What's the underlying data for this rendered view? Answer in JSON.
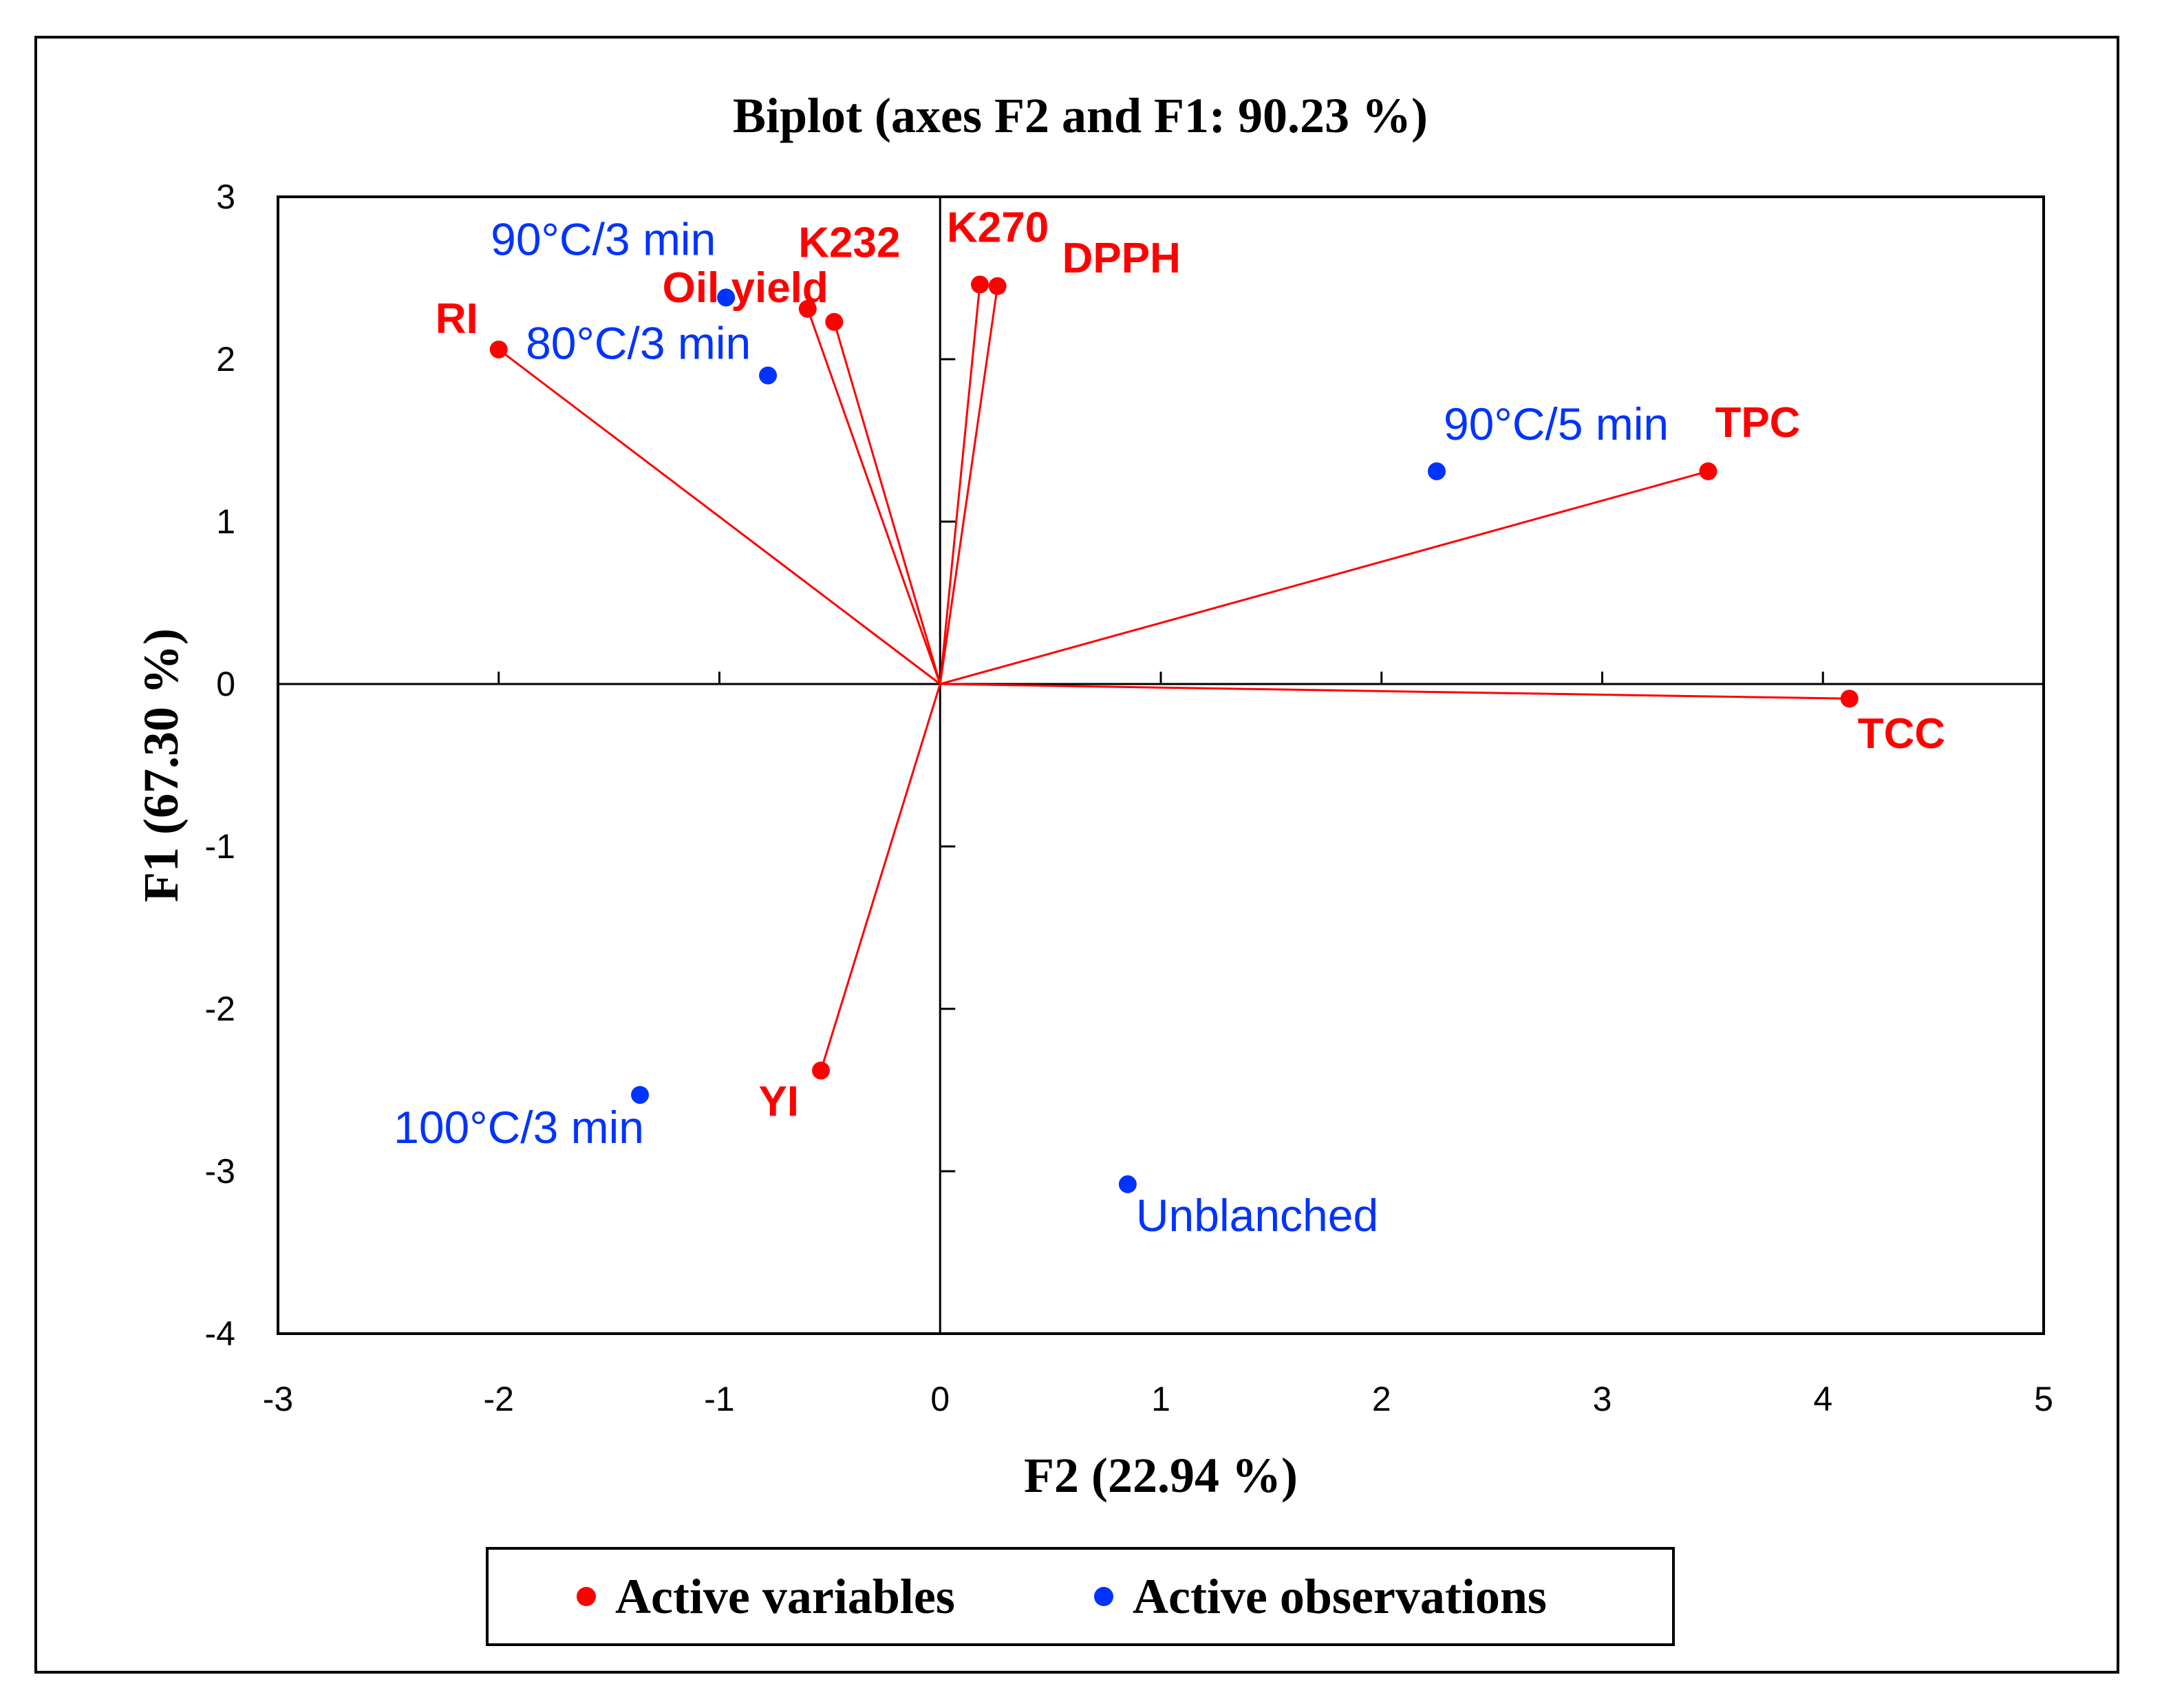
{
  "chart_data": {
    "type": "scatter",
    "subtype": "biplot",
    "title": "Biplot (axes F2 and F1: 90.23 %)",
    "xlabel": "F2 (22.94 %)",
    "ylabel": "F1 (67.30 %)",
    "xlim": [
      -3,
      5
    ],
    "ylim": [
      -4,
      3
    ],
    "xticks": [
      -3,
      -2,
      -1,
      0,
      1,
      2,
      3,
      4,
      5
    ],
    "yticks": [
      -4,
      -3,
      -2,
      -1,
      0,
      1,
      2,
      3
    ],
    "xtick_labels": [
      "-3",
      "-2",
      "-1",
      "0",
      "1",
      "2",
      "3",
      "4",
      "5"
    ],
    "ytick_labels": [
      "-4",
      "-3",
      "-2",
      "-1",
      "0",
      "1",
      "2",
      "3"
    ],
    "colors": {
      "variables": "#ff0000",
      "observations": "#0033ff",
      "axes": "#000000"
    },
    "variables": [
      {
        "name": "RI",
        "x": -2.0,
        "y": 2.06
      },
      {
        "name": "Oil yield",
        "x": -0.6,
        "y": 2.31
      },
      {
        "name": "K232",
        "x": -0.48,
        "y": 2.23
      },
      {
        "name": "K270",
        "x": 0.18,
        "y": 2.46
      },
      {
        "name": "DPPH",
        "x": 0.26,
        "y": 2.45
      },
      {
        "name": "TPC",
        "x": 3.48,
        "y": 1.31
      },
      {
        "name": "TCC",
        "x": 4.12,
        "y": -0.09
      },
      {
        "name": "YI",
        "x": -0.54,
        "y": -2.38
      }
    ],
    "observations": [
      {
        "name": "90°C/3 min",
        "x": -0.97,
        "y": 2.38
      },
      {
        "name": "80°C/3 min",
        "x": -0.78,
        "y": 1.9
      },
      {
        "name": "90°C/5 min",
        "x": 2.25,
        "y": 1.31
      },
      {
        "name": "100°C/3 min",
        "x": -1.36,
        "y": -2.53
      },
      {
        "name": "Unblanched",
        "x": 0.85,
        "y": -3.08
      }
    ],
    "legend": {
      "position": "bottom",
      "entries": [
        {
          "label": "Active variables",
          "color": "#ff0000"
        },
        {
          "label": "Active observations",
          "color": "#0033ff"
        }
      ]
    }
  }
}
